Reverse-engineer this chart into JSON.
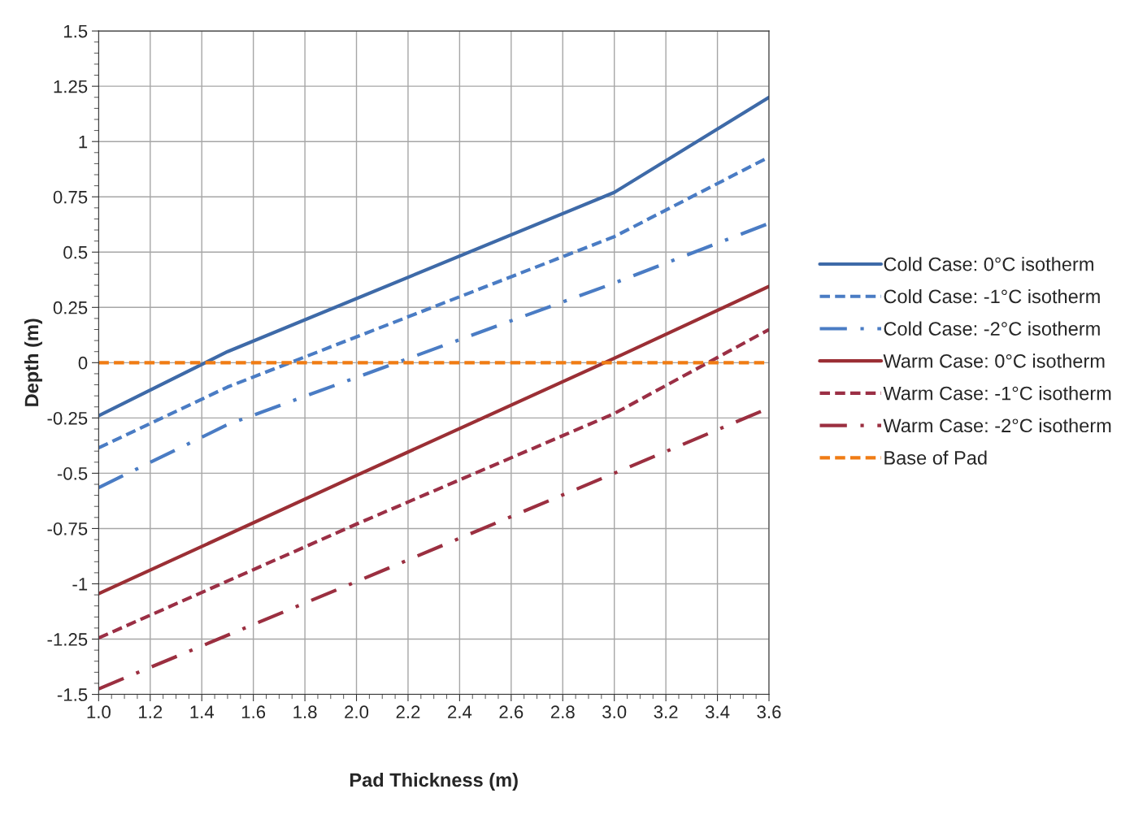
{
  "chart_data": {
    "type": "line",
    "xlabel": "Pad Thickness (m)",
    "ylabel": "Depth (m)",
    "xlim": [
      1.0,
      3.6
    ],
    "ylim": [
      -1.5,
      1.5
    ],
    "xticks": [
      {
        "value": 1.0,
        "label": "1.0"
      },
      {
        "value": 1.2,
        "label": "1.2"
      },
      {
        "value": 1.4,
        "label": "1.4"
      },
      {
        "value": 1.6,
        "label": "1.6"
      },
      {
        "value": 1.8,
        "label": "1.8"
      },
      {
        "value": 2.0,
        "label": "2.0"
      },
      {
        "value": 2.2,
        "label": "2.2"
      },
      {
        "value": 2.4,
        "label": "2.4"
      },
      {
        "value": 2.6,
        "label": "2.6"
      },
      {
        "value": 2.8,
        "label": "2.8"
      },
      {
        "value": 3.0,
        "label": "3.0"
      },
      {
        "value": 3.2,
        "label": "3.2"
      },
      {
        "value": 3.4,
        "label": "3.4"
      },
      {
        "value": 3.6,
        "label": "3.6"
      }
    ],
    "yticks": [
      1.5,
      1.25,
      1,
      0.75,
      0.5,
      0.25,
      0,
      -0.25,
      -0.5,
      -0.75,
      -1,
      -1.25,
      -1.5
    ],
    "grid": true,
    "legend": "right",
    "marker": "none",
    "series": [
      {
        "name": "Cold Case: 0°C isotherm",
        "color": "#3e6aa8",
        "line_style": "solid",
        "x": [
          1.0,
          1.5,
          3.0,
          3.6
        ],
        "values": [
          -0.24,
          0.05,
          0.77,
          1.2
        ]
      },
      {
        "name": "Cold Case: -1°C isotherm",
        "color": "#4a7cc4",
        "line_style": "dashed",
        "x": [
          1.0,
          1.5,
          3.0,
          3.6
        ],
        "values": [
          -0.385,
          -0.11,
          0.57,
          0.93
        ]
      },
      {
        "name": "Cold Case: -2°C isotherm",
        "color": "#4a7cc4",
        "line_style": "dashdot",
        "x": [
          1.0,
          1.5,
          3.0,
          3.6
        ],
        "values": [
          -0.565,
          -0.28,
          0.36,
          0.63
        ]
      },
      {
        "name": "Warm Case: 0°C isotherm",
        "color": "#9b2f35",
        "line_style": "solid",
        "x": [
          1.0,
          2.0,
          3.0,
          3.6
        ],
        "values": [
          -1.045,
          -0.51,
          0.02,
          0.345
        ]
      },
      {
        "name": "Warm Case: -1°C isotherm",
        "color": "#9b2f45",
        "line_style": "dashed",
        "x": [
          1.0,
          2.0,
          3.0,
          3.6
        ],
        "values": [
          -1.245,
          -0.73,
          -0.23,
          0.15
        ]
      },
      {
        "name": "Warm Case: -2°C isotherm",
        "color": "#9b2f40",
        "line_style": "dashdot",
        "x": [
          1.0,
          2.0,
          3.0,
          3.6
        ],
        "values": [
          -1.475,
          -0.99,
          -0.5,
          -0.205
        ]
      },
      {
        "name": "Base of Pad",
        "color": "#f07c14",
        "line_style": "dashed",
        "x": [
          1.0,
          3.6
        ],
        "values": [
          0,
          0
        ]
      }
    ]
  }
}
